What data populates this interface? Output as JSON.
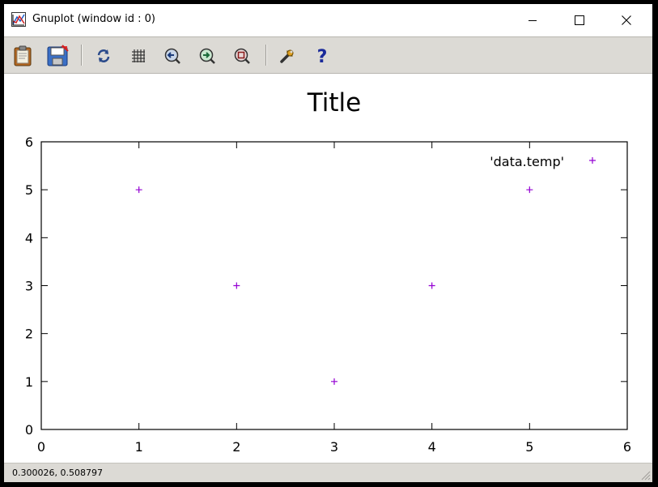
{
  "window": {
    "title": "Gnuplot (window id : 0)"
  },
  "toolbar": {
    "buttons": [
      {
        "icon": "clipboard-icon"
      },
      {
        "icon": "save-icon"
      },
      {
        "icon": "replot-icon"
      },
      {
        "icon": "grid-icon"
      },
      {
        "icon": "zoom-previous-icon"
      },
      {
        "icon": "zoom-next-icon"
      },
      {
        "icon": "unzoom-icon"
      },
      {
        "icon": "options-icon"
      },
      {
        "icon": "help-icon"
      }
    ]
  },
  "status": {
    "coordinates": "0.300026,  0.508797"
  },
  "colors": {
    "series": "#9400d3",
    "toolbar_bg": "#dcdad5"
  },
  "chart_data": {
    "type": "scatter",
    "title": "Title",
    "xlabel": "",
    "ylabel": "",
    "xlim": [
      0,
      6
    ],
    "ylim": [
      0,
      6
    ],
    "xticks": [
      "0",
      "1",
      "2",
      "3",
      "4",
      "5",
      "6"
    ],
    "yticks": [
      "0",
      "1",
      "2",
      "3",
      "4",
      "5",
      "6"
    ],
    "grid": false,
    "legend_position": "top-right",
    "series": [
      {
        "name": "'data.temp'",
        "marker": "+",
        "x": [
          1,
          2,
          3,
          4,
          5
        ],
        "y": [
          5,
          3,
          1,
          3,
          5
        ]
      }
    ]
  }
}
